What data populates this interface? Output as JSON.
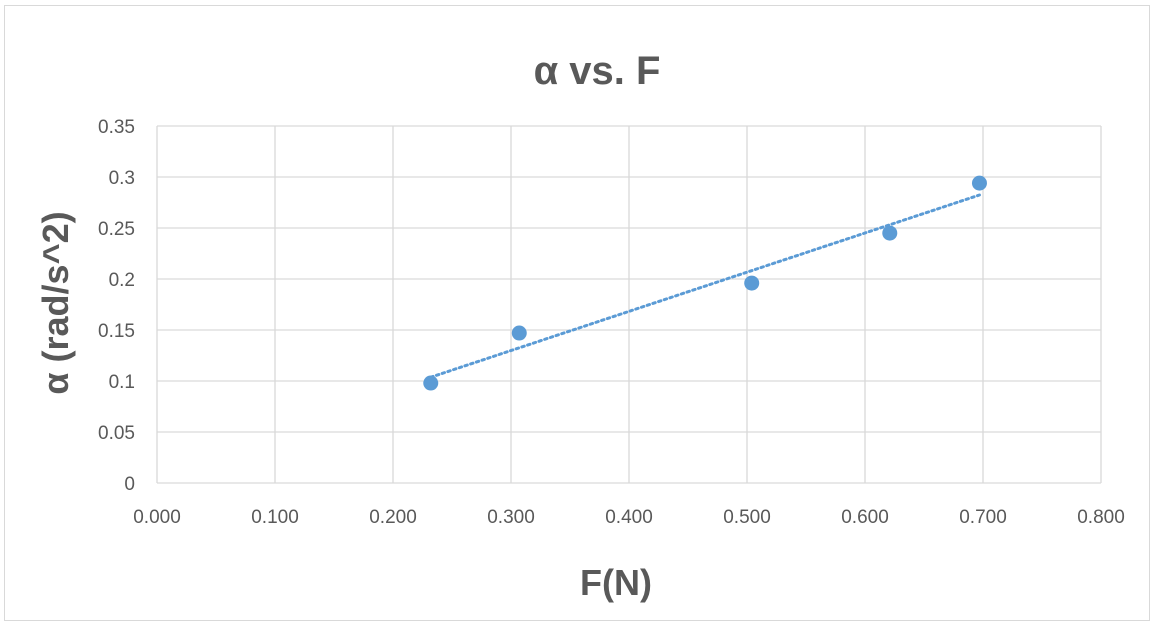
{
  "chart_data": {
    "type": "scatter",
    "title": "α vs. F",
    "xlabel": "F(N)",
    "ylabel": "α (rad/s^2)",
    "xlim": [
      0,
      0.8
    ],
    "ylim": [
      0,
      0.35
    ],
    "x_ticks": [
      "0.000",
      "0.100",
      "0.200",
      "0.300",
      "0.400",
      "0.500",
      "0.600",
      "0.700",
      "0.800"
    ],
    "y_ticks": [
      "0",
      "0.05",
      "0.1",
      "0.15",
      "0.2",
      "0.25",
      "0.3",
      "0.35"
    ],
    "grid": true,
    "series": [
      {
        "x": [
          0.232,
          0.307,
          0.504,
          0.621,
          0.697
        ],
        "y": [
          0.098,
          0.147,
          0.196,
          0.245,
          0.294
        ],
        "color": "#5b9bd5"
      }
    ],
    "trendline": {
      "type": "linear",
      "style": "dotted",
      "color": "#5b9bd5",
      "x_range": [
        0.232,
        0.697
      ]
    }
  }
}
